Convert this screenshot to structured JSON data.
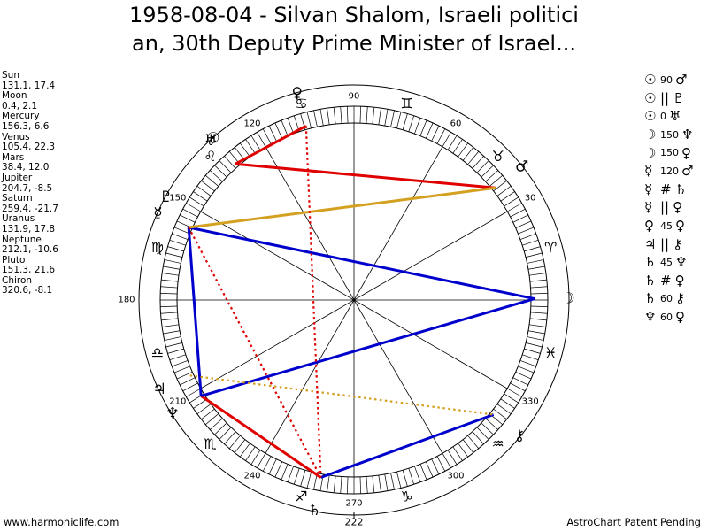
{
  "title_line1": "1958-08-04 - Silvan Shalom, Israeli politici",
  "title_line2": "an, 30th Deputy Prime Minister of Israel...",
  "planets": [
    {
      "name": "Sun",
      "values": "131.1, 17.4"
    },
    {
      "name": "Moon",
      "values": "0.4, 2.1"
    },
    {
      "name": "Mercury",
      "values": "156.3, 6.6"
    },
    {
      "name": "Venus",
      "values": "105.4, 22.3"
    },
    {
      "name": "Mars",
      "values": "38.4, 12.0"
    },
    {
      "name": "Jupiter",
      "values": "204.7, -8.5"
    },
    {
      "name": "Saturn",
      "values": "259.4, -21.7"
    },
    {
      "name": "Uranus",
      "values": "131.9, 17.8"
    },
    {
      "name": "Neptune",
      "values": "212.1, -10.6"
    },
    {
      "name": "Pluto",
      "values": "151.3, 21.6"
    },
    {
      "name": "Chiron",
      "values": "320.6, -8.1"
    }
  ],
  "aspects": [
    {
      "p1": "☉",
      "p1_icon": "sun-icon",
      "angle": "90",
      "sym": "",
      "p2": "♂",
      "p2_icon": "mars-icon"
    },
    {
      "p1": "☉",
      "p1_icon": "sun-icon",
      "angle": "",
      "sym": "||",
      "p2": "♇",
      "p2_icon": "pluto-icon"
    },
    {
      "p1": "☉",
      "p1_icon": "sun-icon",
      "angle": "0",
      "sym": "",
      "p2": "♅",
      "p2_icon": "uranus-icon"
    },
    {
      "p1": "☽",
      "p1_icon": "moon-icon",
      "angle": "150",
      "sym": "",
      "p2": "♆",
      "p2_icon": "neptune-icon"
    },
    {
      "p1": "☽",
      "p1_icon": "moon-icon",
      "angle": "150",
      "sym": "",
      "p2": "♀",
      "p2_icon": "venus-icon"
    },
    {
      "p1": "☿",
      "p1_icon": "mercury-icon",
      "angle": "120",
      "sym": "",
      "p2": "♂",
      "p2_icon": "mars-icon"
    },
    {
      "p1": "☿",
      "p1_icon": "mercury-icon",
      "angle": "",
      "sym": "#",
      "p2": "♄",
      "p2_icon": "saturn-icon"
    },
    {
      "p1": "☿",
      "p1_icon": "mercury-icon",
      "angle": "",
      "sym": "||",
      "p2": "♀",
      "p2_icon": "venus-icon"
    },
    {
      "p1": "♀",
      "p1_icon": "venus-icon",
      "angle": "45",
      "sym": "",
      "p2": "♀",
      "p2_icon": "venus-icon"
    },
    {
      "p1": "♃",
      "p1_icon": "jupiter-icon",
      "angle": "",
      "sym": "||",
      "p2": "⚷",
      "p2_icon": "chiron-icon"
    },
    {
      "p1": "♄",
      "p1_icon": "saturn-icon",
      "angle": "45",
      "sym": "",
      "p2": "♆",
      "p2_icon": "neptune-icon"
    },
    {
      "p1": "♄",
      "p1_icon": "saturn-icon",
      "angle": "",
      "sym": "#",
      "p2": "♀",
      "p2_icon": "venus-icon"
    },
    {
      "p1": "♄",
      "p1_icon": "saturn-icon",
      "angle": "60",
      "sym": "",
      "p2": "⚷",
      "p2_icon": "chiron-icon"
    },
    {
      "p1": "♆",
      "p1_icon": "neptune-icon",
      "angle": "60",
      "sym": "",
      "p2": "♀",
      "p2_icon": "venus-icon"
    }
  ],
  "wheel": {
    "degree_labels": [
      {
        "deg": 90,
        "text": "90"
      },
      {
        "deg": 60,
        "text": "60"
      },
      {
        "deg": 30,
        "text": "30"
      },
      {
        "deg": 120,
        "text": "120"
      },
      {
        "deg": 150,
        "text": "150"
      },
      {
        "deg": 180,
        "text": "180"
      },
      {
        "deg": 210,
        "text": "210"
      },
      {
        "deg": 240,
        "text": "240"
      },
      {
        "deg": 270,
        "text": "270"
      },
      {
        "deg": 300,
        "text": "300"
      },
      {
        "deg": 330,
        "text": "330"
      }
    ],
    "cusp_label": "222",
    "signs": [
      {
        "deg": 15,
        "glyph": "♈",
        "icon": "aries-icon"
      },
      {
        "deg": 45,
        "glyph": "♉",
        "icon": "taurus-icon"
      },
      {
        "deg": 75,
        "glyph": "♊",
        "icon": "gemini-icon"
      },
      {
        "deg": 105,
        "glyph": "♋",
        "icon": "cancer-icon"
      },
      {
        "deg": 135,
        "glyph": "♌",
        "icon": "leo-icon"
      },
      {
        "deg": 165,
        "glyph": "♍",
        "icon": "virgo-icon"
      },
      {
        "deg": 195,
        "glyph": "♎",
        "icon": "libra-icon"
      },
      {
        "deg": 225,
        "glyph": "♏",
        "icon": "scorpio-icon"
      },
      {
        "deg": 255,
        "glyph": "♐",
        "icon": "sagittarius-icon"
      },
      {
        "deg": 285,
        "glyph": "♑",
        "icon": "capricorn-icon"
      },
      {
        "deg": 315,
        "glyph": "♒",
        "icon": "aquarius-icon"
      },
      {
        "deg": 345,
        "glyph": "♓",
        "icon": "pisces-icon"
      }
    ],
    "planets": [
      {
        "deg": 131.1,
        "glyph": "☉",
        "icon": "sun-icon"
      },
      {
        "deg": 0.4,
        "glyph": "☽",
        "icon": "moon-icon"
      },
      {
        "deg": 156.3,
        "glyph": "☿",
        "icon": "mercury-icon"
      },
      {
        "deg": 105.4,
        "glyph": "♀",
        "icon": "venus-icon"
      },
      {
        "deg": 38.4,
        "glyph": "♂",
        "icon": "mars-icon"
      },
      {
        "deg": 204.7,
        "glyph": "♃",
        "icon": "jupiter-icon"
      },
      {
        "deg": 259.4,
        "glyph": "♄",
        "icon": "saturn-icon"
      },
      {
        "deg": 131.9,
        "glyph": "♅",
        "icon": "uranus-icon"
      },
      {
        "deg": 212.1,
        "glyph": "♆",
        "icon": "neptune-icon"
      },
      {
        "deg": 151.3,
        "glyph": "♇",
        "icon": "pluto-icon"
      },
      {
        "deg": 320.6,
        "glyph": "⚷",
        "icon": "chiron-icon"
      }
    ],
    "aspect_lines": [
      {
        "from": 131.1,
        "to": 38.4,
        "color": "#e00000",
        "style": "solid"
      },
      {
        "from": 105.4,
        "to": 131.1,
        "color": "#e00000",
        "style": "solid"
      },
      {
        "from": 212.1,
        "to": 259.4,
        "color": "#e00000",
        "style": "solid"
      },
      {
        "from": 0.4,
        "to": 156.3,
        "color": "#0000cc",
        "style": "solid"
      },
      {
        "from": 0.4,
        "to": 212.1,
        "color": "#0000cc",
        "style": "solid"
      },
      {
        "from": 156.3,
        "to": 212.1,
        "color": "#0000cc",
        "style": "solid"
      },
      {
        "from": 259.4,
        "to": 320.6,
        "color": "#0000cc",
        "style": "solid"
      },
      {
        "from": 38.4,
        "to": 156.3,
        "color": "#d4a020",
        "style": "solid"
      },
      {
        "from": 204.7,
        "to": 320.6,
        "color": "#d4a020",
        "style": "dotted"
      },
      {
        "from": 105.4,
        "to": 259.4,
        "color": "#e00000",
        "style": "dotted"
      },
      {
        "from": 156.3,
        "to": 259.4,
        "color": "#e00000",
        "style": "dotted"
      }
    ]
  },
  "footer_left": "www.harmoniclife.com",
  "footer_right": "AstroChart Patent Pending"
}
